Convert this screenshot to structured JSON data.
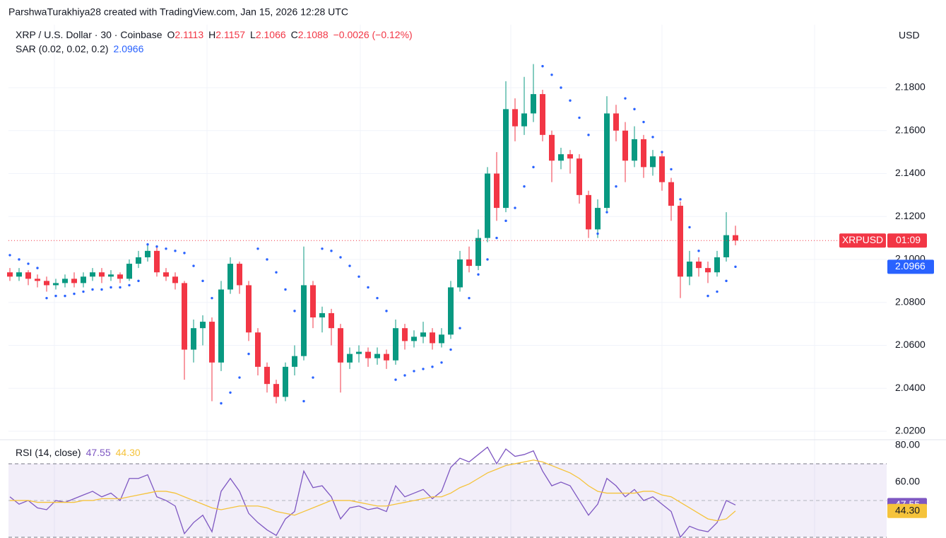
{
  "header": {
    "text": "ParshwaTurakhiya28 created with TradingView.com, Jan 15, 2026 12:28 UTC"
  },
  "chart_data": {
    "type": "candlestick",
    "symbol": "XRP / U.S. Dollar · 30 · Coinbase",
    "ohlc_legend": [
      {
        "key": "O",
        "value": "2.1113"
      },
      {
        "key": "H",
        "value": "2.1157"
      },
      {
        "key": "L",
        "value": "2.1066"
      },
      {
        "key": "C",
        "value": "2.1088"
      }
    ],
    "change": "−0.0026 (−0.12%)",
    "currency": "USD",
    "ticker": "XRPUSD",
    "countdown": "01:09",
    "up_color": "#089981",
    "down_color": "#f23645",
    "grid": true,
    "ylim": [
      2.0167,
      2.2093
    ],
    "yticks": [
      {
        "value": 2.02,
        "label": "2.0200"
      },
      {
        "value": 2.04,
        "label": "2.0400"
      },
      {
        "value": 2.06,
        "label": "2.0600"
      },
      {
        "value": 2.08,
        "label": "2.0800"
      },
      {
        "value": 2.1,
        "label": "2.1000"
      },
      {
        "value": 2.12,
        "label": "2.1200"
      },
      {
        "value": 2.14,
        "label": "2.1400"
      },
      {
        "value": 2.16,
        "label": "2.1600"
      },
      {
        "value": 2.18,
        "label": "2.1800"
      }
    ],
    "open": [
      2.094,
      2.092,
      2.094,
      2.091,
      2.09,
      2.088,
      2.089,
      2.091,
      2.089,
      2.092,
      2.094,
      2.092,
      2.093,
      2.091,
      2.098,
      2.101,
      2.104,
      2.094,
      2.092,
      2.089,
      2.058,
      2.068,
      2.071,
      2.052,
      2.086,
      2.098,
      2.088,
      2.066,
      2.05,
      2.042,
      2.036,
      2.05,
      2.055,
      2.088,
      2.073,
      2.075,
      2.068,
      2.052,
      2.056,
      2.057,
      2.054,
      2.056,
      2.053,
      2.068,
      2.062,
      2.064,
      2.066,
      2.061,
      2.065,
      2.087,
      2.1,
      2.097,
      2.11,
      2.14,
      2.124,
      2.17,
      2.162,
      2.168,
      2.177,
      2.158,
      2.146,
      2.149,
      2.147,
      2.13,
      2.114,
      2.124,
      2.168,
      2.16,
      2.146,
      2.156,
      2.143,
      2.148,
      2.136,
      2.125,
      2.092,
      2.099,
      2.096,
      2.094,
      2.101,
      2.1113
    ],
    "high": [
      2.096,
      2.096,
      2.095,
      2.093,
      2.092,
      2.091,
      2.093,
      2.094,
      2.094,
      2.096,
      2.096,
      2.095,
      2.094,
      2.1,
      2.104,
      2.107,
      2.106,
      2.096,
      2.094,
      2.09,
      2.072,
      2.074,
      2.073,
      2.09,
      2.101,
      2.099,
      2.09,
      2.068,
      2.052,
      2.044,
      2.052,
      2.06,
      2.106,
      2.09,
      2.078,
      2.077,
      2.07,
      2.059,
      2.06,
      2.059,
      2.059,
      2.058,
      2.072,
      2.07,
      2.067,
      2.071,
      2.068,
      2.068,
      2.09,
      2.104,
      2.106,
      2.114,
      2.143,
      2.15,
      2.183,
      2.175,
      2.185,
      2.191,
      2.179,
      2.16,
      2.152,
      2.151,
      2.149,
      2.132,
      2.128,
      2.176,
      2.172,
      2.164,
      2.162,
      2.158,
      2.151,
      2.15,
      2.138,
      2.127,
      2.104,
      2.101,
      2.099,
      2.104,
      2.122,
      2.1157
    ],
    "low": [
      2.09,
      2.09,
      2.088,
      2.087,
      2.085,
      2.086,
      2.087,
      2.087,
      2.087,
      2.09,
      2.089,
      2.09,
      2.089,
      2.09,
      2.096,
      2.099,
      2.092,
      2.09,
      2.086,
      2.044,
      2.052,
      2.06,
      2.034,
      2.048,
      2.084,
      2.084,
      2.062,
      2.046,
      2.038,
      2.033,
      2.034,
      2.046,
      2.053,
      2.068,
      2.066,
      2.06,
      2.038,
      2.049,
      2.052,
      2.05,
      2.051,
      2.049,
      2.051,
      2.058,
      2.059,
      2.061,
      2.058,
      2.059,
      2.063,
      2.085,
      2.094,
      2.095,
      2.108,
      2.118,
      2.122,
      2.155,
      2.158,
      2.164,
      2.155,
      2.136,
      2.142,
      2.14,
      2.126,
      2.11,
      2.11,
      2.122,
      2.155,
      2.136,
      2.143,
      2.138,
      2.139,
      2.132,
      2.118,
      2.082,
      2.088,
      2.092,
      2.089,
      2.092,
      2.099,
      2.1066
    ],
    "close": [
      2.092,
      2.094,
      2.091,
      2.09,
      2.088,
      2.089,
      2.091,
      2.089,
      2.092,
      2.094,
      2.092,
      2.093,
      2.091,
      2.098,
      2.101,
      2.104,
      2.094,
      2.092,
      2.089,
      2.058,
      2.068,
      2.071,
      2.052,
      2.086,
      2.098,
      2.088,
      2.066,
      2.05,
      2.042,
      2.036,
      2.05,
      2.055,
      2.088,
      2.073,
      2.075,
      2.068,
      2.052,
      2.056,
      2.057,
      2.054,
      2.056,
      2.053,
      2.068,
      2.062,
      2.064,
      2.066,
      2.061,
      2.065,
      2.087,
      2.1,
      2.097,
      2.11,
      2.14,
      2.124,
      2.17,
      2.162,
      2.168,
      2.177,
      2.158,
      2.146,
      2.149,
      2.147,
      2.13,
      2.114,
      2.124,
      2.168,
      2.16,
      2.146,
      2.156,
      2.143,
      2.148,
      2.136,
      2.125,
      2.092,
      2.099,
      2.096,
      2.094,
      2.101,
      2.1113,
      2.1088
    ],
    "indicators": [
      {
        "type": "sar",
        "name": "SAR (0.02, 0.02, 0.2)",
        "value_label": "2.0966",
        "color": "#2962ff",
        "values": [
          2.102,
          2.1,
          2.098,
          2.096,
          2.082,
          2.083,
          2.083,
          2.084,
          2.085,
          2.086,
          2.086,
          2.087,
          2.087,
          2.088,
          2.09,
          2.107,
          2.106,
          2.105,
          2.104,
          2.103,
          2.097,
          2.09,
          2.082,
          2.033,
          2.038,
          2.045,
          2.056,
          2.105,
          2.1,
          2.094,
          2.086,
          2.076,
          2.034,
          2.045,
          2.105,
          2.104,
          2.101,
          2.097,
          2.092,
          2.087,
          2.082,
          2.076,
          2.044,
          2.046,
          2.048,
          2.049,
          2.05,
          2.052,
          2.058,
          2.068,
          2.082,
          2.093,
          2.1,
          2.11,
          2.118,
          2.124,
          2.134,
          2.143,
          2.19,
          2.186,
          2.18,
          2.174,
          2.166,
          2.158,
          2.112,
          2.122,
          2.134,
          2.175,
          2.17,
          2.164,
          2.157,
          2.15,
          2.142,
          2.128,
          2.115,
          2.104,
          2.083,
          2.085,
          2.09,
          2.0966
        ]
      }
    ],
    "rsi_pane": {
      "type": "line",
      "name": "RSI (14, close)",
      "ylim": [
        29.6,
        81.9
      ],
      "yticks": [
        {
          "value": 80,
          "label": "80.00"
        },
        {
          "value": 60,
          "label": "60.00"
        }
      ],
      "band": [
        30,
        70
      ],
      "midline": 50,
      "band_color": "#7e57c2",
      "series": [
        {
          "value_label": "47.55",
          "color": "#7e57c2",
          "values": [
            52,
            48,
            50,
            46,
            45,
            50,
            49,
            51,
            53,
            55,
            52,
            54,
            50,
            62,
            62,
            64,
            52,
            50,
            47,
            32,
            38,
            42,
            33,
            55,
            62,
            55,
            43,
            38,
            34,
            31,
            40,
            44,
            66,
            57,
            58,
            52,
            40,
            46,
            47,
            45,
            46,
            44,
            58,
            52,
            54,
            56,
            51,
            55,
            68,
            73,
            71,
            75,
            79,
            70,
            78,
            74,
            75,
            77,
            66,
            58,
            60,
            58,
            50,
            42,
            48,
            62,
            58,
            52,
            56,
            50,
            52,
            48,
            44,
            30,
            36,
            34,
            33,
            38,
            50,
            47.55
          ]
        },
        {
          "value_label": "44.30",
          "color": "#f5c33b",
          "values": [
            50,
            50,
            50,
            49,
            49,
            49,
            49,
            49,
            50,
            50,
            51,
            51,
            51,
            52,
            53,
            54,
            55,
            55,
            54,
            52,
            50,
            48,
            46,
            45,
            46,
            47,
            47,
            47,
            46,
            44,
            43,
            42,
            44,
            46,
            48,
            50,
            50,
            50,
            49,
            48,
            47,
            47,
            48,
            49,
            50,
            51,
            52,
            52,
            54,
            57,
            59,
            62,
            65,
            67,
            69,
            70,
            71,
            72,
            71,
            69,
            67,
            65,
            62,
            58,
            55,
            54,
            54,
            54,
            54,
            55,
            55,
            53,
            52,
            49,
            46,
            43,
            40,
            39,
            40,
            44.3
          ]
        }
      ]
    }
  }
}
